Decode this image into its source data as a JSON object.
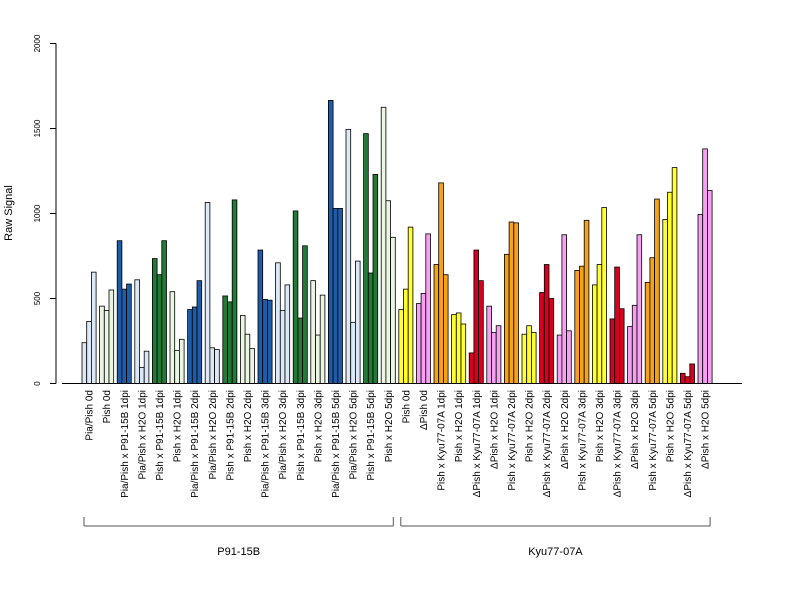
{
  "chart_data": {
    "type": "bar",
    "ylabel": "Raw Signal",
    "ylim": [
      0,
      2000
    ],
    "yticks": [
      0,
      500,
      1000,
      1500,
      2000
    ],
    "groups": [
      {
        "name": "P91-15B",
        "color_map": {
          "Pia/Pish 0d": "#dde8f6",
          "Pish 0d": "#eaf5e2",
          "Pia/Pish x P91-15B 1dpi": "#1f5ca8",
          "Pia/Pish x H2O 1dpi": "#dde8f6",
          "Pish x P91-15B 1dpi": "#237a37",
          "Pish x H2O 1dpi": "#eaf5e2",
          "Pia/Pish x P91-15B 2dpi": "#1f5ca8",
          "Pia/Pish x H2O 2dpi": "#dde8f6",
          "Pish x P91-15B 2dpi": "#237a37",
          "Pish x H2O 2dpi": "#eaf5e2",
          "Pia/Pish x P91-15B 3dpi": "#1f5ca8",
          "Pia/Pish x H2O 3dpi": "#dde8f6",
          "Pish x P91-15B 3dpi": "#237a37",
          "Pish x H2O 3dpi": "#eaf5e2",
          "Pia/Pish x P91-15B 5dpi": "#1f5ca8",
          "Pia/Pish x H2O 5dpi": "#dde8f6",
          "Pish x P91-15B 5dpi": "#237a37",
          "Pish x H2O 5dpi": "#eaf5e2"
        }
      },
      {
        "name": "Kyu77-07A",
        "color_map": {
          "Pish 0d": "#ffff33",
          "ΔPish 0d": "#f5a0f0",
          "Pish x Kyu77-07A 1dpi": "#f5a11a",
          "Pish x H2O 1dpi": "#ffff33",
          "ΔPish x Kyu77-07A 1dpi": "#d7001f",
          "ΔPish x H2O 1dpi": "#f5a0f0",
          "Pish x Kyu77-07A 2dpi": "#f5a11a",
          "Pish x H2O 2dpi": "#ffff33",
          "ΔPish x Kyu77-07A 2dpi": "#d7001f",
          "ΔPish x H2O 2dpi": "#f5a0f0",
          "Pish x Kyu77-07A 3dpi": "#f5a11a",
          "Pish x H2O 3dpi": "#ffff33",
          "ΔPish x Kyu77-07A 3dpi": "#d7001f",
          "ΔPish x H2O 3dpi": "#f5a0f0",
          "Pish x Kyu77-07A 5dpi": "#f5a11a",
          "Pish x H2O 5dpi": "#ffff33",
          "ΔPish x Kyu77-07A 5dpi": "#d7001f",
          "ΔPish x H2O 5dpi": "#f5a0f0"
        }
      }
    ],
    "categories": [
      {
        "label": "Pia/Pish 0d",
        "group": 0,
        "values": [
          240,
          365,
          655
        ]
      },
      {
        "label": "Pish 0d",
        "group": 0,
        "values": [
          455,
          430,
          550
        ]
      },
      {
        "label": "Pia/Pish x P91-15B 1dpi",
        "group": 0,
        "values": [
          840,
          555,
          585
        ]
      },
      {
        "label": "Pia/Pish x H2O 1dpi",
        "group": 0,
        "values": [
          610,
          95,
          190
        ]
      },
      {
        "label": "Pish x P91-15B 1dpi",
        "group": 0,
        "values": [
          735,
          640,
          840
        ]
      },
      {
        "label": "Pish x H2O 1dpi",
        "group": 0,
        "values": [
          540,
          195,
          260
        ]
      },
      {
        "label": "Pia/Pish x P91-15B 2dpi",
        "group": 0,
        "values": [
          435,
          450,
          605
        ]
      },
      {
        "label": "Pia/Pish x H2O 2dpi",
        "group": 0,
        "values": [
          1065,
          210,
          200
        ]
      },
      {
        "label": "Pish x P91-15B 2dpi",
        "group": 0,
        "values": [
          515,
          480,
          1080
        ]
      },
      {
        "label": "Pish x H2O 2dpi",
        "group": 0,
        "values": [
          400,
          290,
          205
        ]
      },
      {
        "label": "Pia/Pish x P91-15B 3dpi",
        "group": 0,
        "values": [
          785,
          495,
          490
        ]
      },
      {
        "label": "Pia/Pish x H2O 3dpi",
        "group": 0,
        "values": [
          710,
          430,
          580
        ]
      },
      {
        "label": "Pish x P91-15B 3dpi",
        "group": 0,
        "values": [
          1015,
          385,
          810
        ]
      },
      {
        "label": "Pish x H2O 3dpi",
        "group": 0,
        "values": [
          605,
          285,
          520
        ]
      },
      {
        "label": "Pia/Pish x P91-15B 5dpi",
        "group": 0,
        "values": [
          1665,
          1030,
          1030
        ]
      },
      {
        "label": "Pia/Pish x H2O 5dpi",
        "group": 0,
        "values": [
          1495,
          360,
          720
        ]
      },
      {
        "label": "Pish x P91-15B 5dpi",
        "group": 0,
        "values": [
          1470,
          650,
          1230
        ]
      },
      {
        "label": "Pish x H2O 5dpi",
        "group": 0,
        "values": [
          1625,
          1075,
          860
        ]
      },
      {
        "label": "Pish 0d",
        "group": 1,
        "values": [
          435,
          555,
          920
        ]
      },
      {
        "label": "ΔPish 0d",
        "group": 1,
        "values": [
          470,
          530,
          880
        ]
      },
      {
        "label": "Pish x Kyu77-07A 1dpi",
        "group": 1,
        "values": [
          700,
          1180,
          640
        ]
      },
      {
        "label": "Pish x H2O 1dpi",
        "group": 1,
        "values": [
          405,
          415,
          350
        ]
      },
      {
        "label": "ΔPish x Kyu77-07A 1dpi",
        "group": 1,
        "values": [
          180,
          785,
          605
        ]
      },
      {
        "label": "ΔPish x H2O 1dpi",
        "group": 1,
        "values": [
          455,
          300,
          340
        ]
      },
      {
        "label": "Pish x Kyu77-07A 2dpi",
        "group": 1,
        "values": [
          760,
          950,
          945
        ]
      },
      {
        "label": "Pish x H2O 2dpi",
        "group": 1,
        "values": [
          290,
          340,
          300
        ]
      },
      {
        "label": "ΔPish x Kyu77-07A 2dpi",
        "group": 1,
        "values": [
          535,
          700,
          500
        ]
      },
      {
        "label": "ΔPish x H2O 2dpi",
        "group": 1,
        "values": [
          285,
          875,
          310
        ]
      },
      {
        "label": "Pish x Kyu77-07A 3dpi",
        "group": 1,
        "values": [
          665,
          690,
          960
        ]
      },
      {
        "label": "Pish x H2O 3dpi",
        "group": 1,
        "values": [
          580,
          700,
          1035
        ]
      },
      {
        "label": "ΔPish x Kyu77-07A 3dpi",
        "group": 1,
        "values": [
          380,
          685,
          440
        ]
      },
      {
        "label": "ΔPish x H2O 3dpi",
        "group": 1,
        "values": [
          335,
          460,
          875
        ]
      },
      {
        "label": "Pish x Kyu77-07A 5dpi",
        "group": 1,
        "values": [
          595,
          740,
          1085
        ]
      },
      {
        "label": "Pish x H2O 5dpi",
        "group": 1,
        "values": [
          965,
          1125,
          1270
        ]
      },
      {
        "label": "ΔPish x Kyu77-07A 5dpi",
        "group": 1,
        "values": [
          60,
          40,
          115
        ]
      },
      {
        "label": "ΔPish x H2O 5dpi",
        "group": 1,
        "values": [
          995,
          1380,
          1135
        ]
      }
    ]
  }
}
